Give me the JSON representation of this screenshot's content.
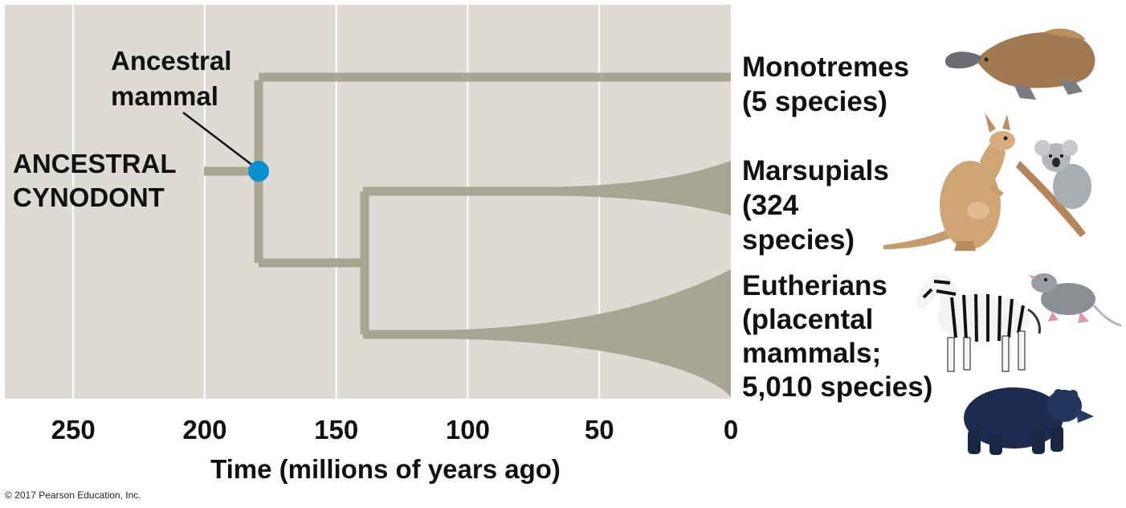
{
  "timeline": {
    "ticks": [
      "250",
      "200",
      "150",
      "100",
      "50",
      "0"
    ],
    "tick_values": [
      250,
      200,
      150,
      100,
      50,
      0
    ],
    "axis_title": "Time (millions of years ago)",
    "range_mya": [
      276,
      0
    ]
  },
  "tree": {
    "root_label": [
      "ANCESTRAL",
      "CYNODONT"
    ],
    "node_label": [
      "Ancestral",
      "mammal"
    ],
    "ancestral_mammal_time_mya": 180,
    "marsupial_eutherian_split_mya": 140,
    "colors": {
      "background": "#dddbd3",
      "branch": "#a8a592",
      "node": "#0a8fd0",
      "grid": "#ffffff"
    }
  },
  "groups": [
    {
      "id": "monotremes",
      "lines": [
        "Monotremes",
        "(5 species)"
      ],
      "animals": [
        "platypus"
      ]
    },
    {
      "id": "marsupials",
      "lines": [
        "Marsupials",
        "(324",
        "species)"
      ],
      "animals": [
        "kangaroo",
        "koala"
      ]
    },
    {
      "id": "eutherians",
      "lines": [
        "Eutherians",
        "(placental",
        "mammals;",
        "5,010 species)"
      ],
      "animals": [
        "zebra",
        "shrew",
        "bear"
      ]
    }
  ],
  "copyright": "© 2017 Pearson Education, Inc."
}
